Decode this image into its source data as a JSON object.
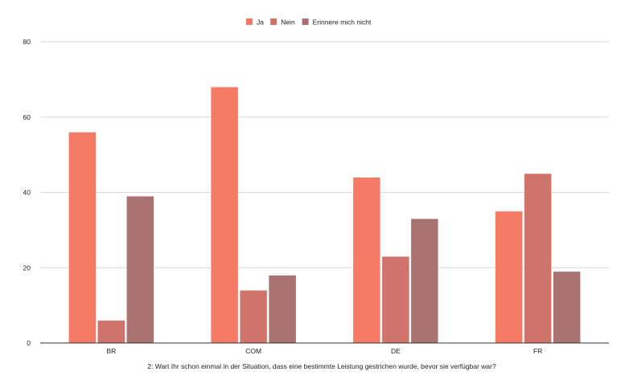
{
  "chart_data": {
    "type": "bar",
    "title": "",
    "xlabel": "2: Wart Ihr schon einmal in der Situation, dass eine bestimmte Leistung gestrichen wurde, bevor sie verfügbar war?",
    "ylabel": "",
    "ylim": [
      0,
      80
    ],
    "yticks": [
      "0",
      "20",
      "40",
      "60",
      "80"
    ],
    "categories": [
      "BR",
      "COM",
      "DE",
      "FR"
    ],
    "series": [
      {
        "name": "Ja",
        "color": "#f47a66",
        "values": [
          56,
          68,
          44,
          35
        ]
      },
      {
        "name": "Nein",
        "color": "#cf736b",
        "values": [
          6,
          14,
          23,
          45
        ]
      },
      {
        "name": "Erinnere mich nicht",
        "color": "#a97171",
        "values": [
          39,
          18,
          33,
          19
        ]
      }
    ],
    "legend_position": "top-center",
    "grid": true
  }
}
